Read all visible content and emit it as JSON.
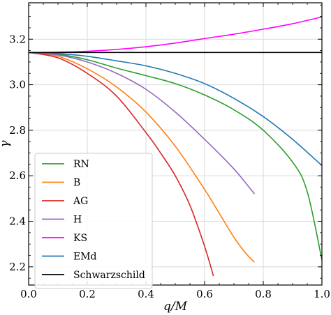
{
  "chart_data": {
    "type": "line",
    "xlabel": "q/M",
    "ylabel": "γ",
    "xlim": [
      0,
      1.0
    ],
    "ylim": [
      2.12,
      3.36
    ],
    "xticks": [
      0.0,
      0.2,
      0.4,
      0.6,
      0.8,
      1.0
    ],
    "xtick_labels": [
      "0.0",
      "0.2",
      "0.4",
      "0.6",
      "0.8",
      "1.0"
    ],
    "yticks": [
      2.2,
      2.4,
      2.6,
      2.8,
      3.0,
      3.2
    ],
    "ytick_labels": [
      "2.2",
      "2.4",
      "2.6",
      "2.8",
      "3.0",
      "3.2"
    ],
    "grid": true,
    "legend_position": "lower-left",
    "series": [
      {
        "name": "RN",
        "color": "#2ca02c",
        "x": [
          0,
          0.1,
          0.2,
          0.3,
          0.4,
          0.5,
          0.6,
          0.7,
          0.8,
          0.9,
          0.95,
          1.0
        ],
        "y": [
          3.1416,
          3.134,
          3.11,
          3.073,
          3.04,
          3.005,
          2.955,
          2.89,
          2.8,
          2.66,
          2.53,
          2.23
        ]
      },
      {
        "name": "B",
        "color": "#ff7f0e",
        "x": [
          0,
          0.1,
          0.2,
          0.3,
          0.4,
          0.5,
          0.6,
          0.65,
          0.7,
          0.74,
          0.77
        ],
        "y": [
          3.1416,
          3.125,
          3.07,
          2.99,
          2.88,
          2.73,
          2.54,
          2.435,
          2.33,
          2.26,
          2.22
        ]
      },
      {
        "name": "AG",
        "color": "#d62728",
        "x": [
          0,
          0.1,
          0.2,
          0.3,
          0.4,
          0.45,
          0.5,
          0.55,
          0.6,
          0.63
        ],
        "y": [
          3.1416,
          3.118,
          3.05,
          2.95,
          2.79,
          2.7,
          2.6,
          2.47,
          2.29,
          2.16
        ]
      },
      {
        "name": "H",
        "color": "#9467bd",
        "x": [
          0,
          0.1,
          0.2,
          0.3,
          0.4,
          0.5,
          0.6,
          0.7,
          0.77
        ],
        "y": [
          3.1416,
          3.131,
          3.1,
          3.05,
          2.98,
          2.88,
          2.76,
          2.63,
          2.52
        ]
      },
      {
        "name": "KS",
        "color": "#ff00ff",
        "x": [
          0,
          0.1,
          0.2,
          0.3,
          0.4,
          0.5,
          0.6,
          0.7,
          0.8,
          0.9,
          1.0
        ],
        "y": [
          3.1416,
          3.143,
          3.147,
          3.155,
          3.167,
          3.183,
          3.203,
          3.222,
          3.244,
          3.268,
          3.298
        ]
      },
      {
        "name": "EMd",
        "color": "#1f77b4",
        "x": [
          0,
          0.1,
          0.2,
          0.3,
          0.4,
          0.5,
          0.6,
          0.7,
          0.8,
          0.9,
          1.0
        ],
        "y": [
          3.1416,
          3.137,
          3.125,
          3.105,
          3.083,
          3.05,
          3.005,
          2.94,
          2.86,
          2.76,
          2.645
        ]
      },
      {
        "name": "Schwarzschild",
        "color": "#000000",
        "x": [
          0,
          1.0
        ],
        "y": [
          3.1416,
          3.1416
        ]
      }
    ]
  }
}
